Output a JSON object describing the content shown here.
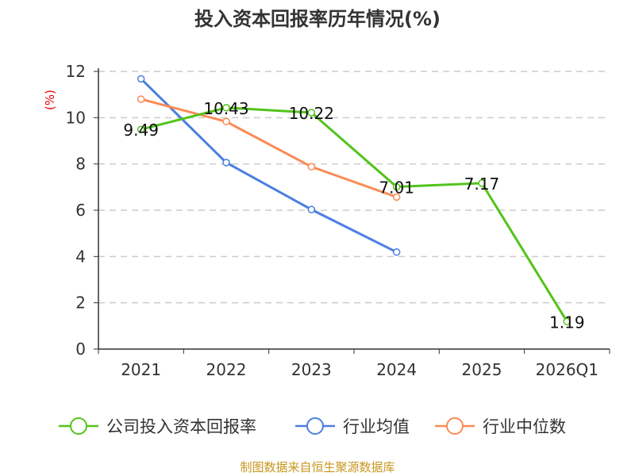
{
  "chart_data": {
    "type": "line",
    "title": "投入资本回报率历年情况(%)",
    "ylabel": "(%)",
    "categories": [
      "2021",
      "2022",
      "2023",
      "2024",
      "2025",
      "2026Q1"
    ],
    "ylim": [
      0,
      12
    ],
    "yticks": [
      0,
      2,
      4,
      6,
      8,
      10,
      12
    ],
    "grid": true,
    "legend_position": "bottom",
    "series": [
      {
        "name": "公司投入资本回报率",
        "color": "#52c41a",
        "values": [
          9.49,
          10.43,
          10.22,
          7.01,
          7.17,
          1.19
        ],
        "labels": [
          "9.49",
          "10.43",
          "10.22",
          "7.01",
          "7.17",
          "1.19"
        ]
      },
      {
        "name": "行业均值",
        "color": "#4a7fe0",
        "values": [
          11.68,
          8.06,
          6.03,
          4.19,
          null,
          null
        ]
      },
      {
        "name": "行业中位数",
        "color": "#fb8a56",
        "values": [
          10.8,
          9.83,
          7.88,
          6.57,
          null,
          null
        ]
      }
    ]
  },
  "source": "制图数据来自恒生聚源数据库"
}
